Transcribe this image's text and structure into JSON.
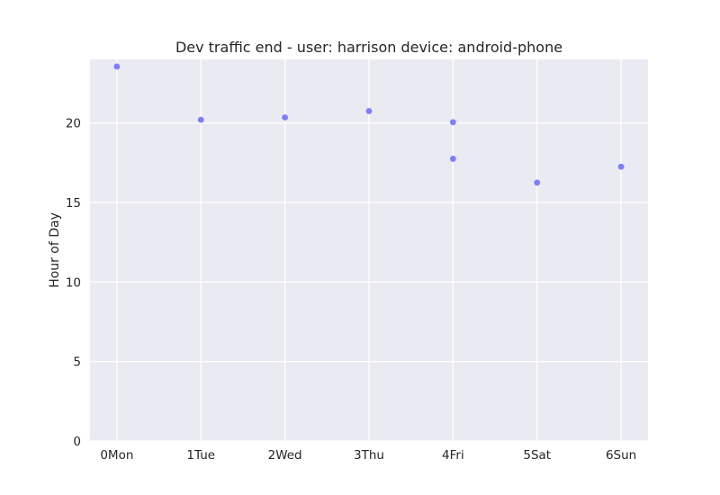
{
  "chart_data": {
    "type": "scatter",
    "title": "Dev traffic end - user: harrison device: android-phone",
    "xlabel": "",
    "ylabel": "Hour of Day",
    "x_categories": [
      "0Mon",
      "1Tue",
      "2Wed",
      "3Thu",
      "4Fri",
      "5Sat",
      "6Sun"
    ],
    "xlim": [
      -0.32,
      6.32
    ],
    "ylim": [
      0,
      24
    ],
    "yticks": [
      0,
      5,
      10,
      15,
      20
    ],
    "grid": true,
    "legend": "none",
    "point_color": "#6b6bf5",
    "series": [
      {
        "points": [
          {
            "x": 0,
            "y": 23.55
          },
          {
            "x": 1,
            "y": 20.2
          },
          {
            "x": 2,
            "y": 20.35
          },
          {
            "x": 3,
            "y": 20.75
          },
          {
            "x": 4,
            "y": 20.05
          },
          {
            "x": 4,
            "y": 17.75
          },
          {
            "x": 5,
            "y": 16.25
          },
          {
            "x": 6,
            "y": 17.25
          }
        ]
      }
    ]
  }
}
